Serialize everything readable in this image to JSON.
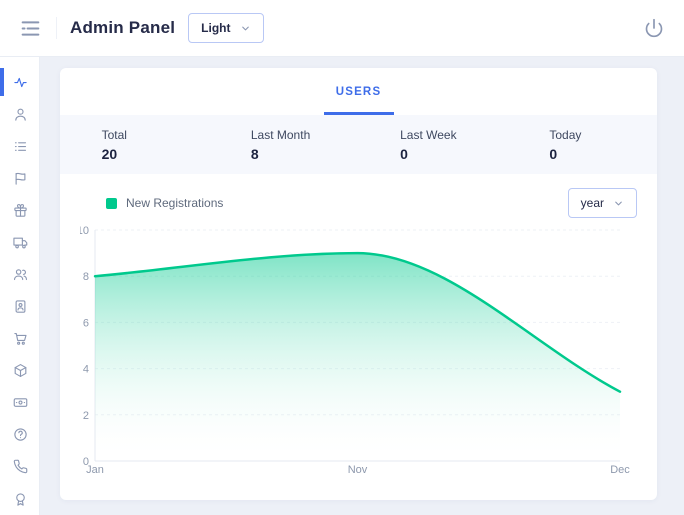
{
  "header": {
    "title": "Admin Panel",
    "menu_icon": "menu-icon",
    "theme_selector": {
      "value": "Light",
      "chevron_icon": "chevron-down-icon"
    },
    "power_icon": "power-icon"
  },
  "sidebar": {
    "items": [
      {
        "icon": "activity-icon",
        "active": true
      },
      {
        "icon": "user-icon",
        "active": false
      },
      {
        "icon": "list-icon",
        "active": false
      },
      {
        "icon": "flag-icon",
        "active": false
      },
      {
        "icon": "gift-icon",
        "active": false
      },
      {
        "icon": "truck-icon",
        "active": false
      },
      {
        "icon": "users-icon",
        "active": false
      },
      {
        "icon": "contact-card-icon",
        "active": false
      },
      {
        "icon": "cart-icon",
        "active": false
      },
      {
        "icon": "package-icon",
        "active": false
      },
      {
        "icon": "wallet-icon",
        "active": false
      },
      {
        "icon": "help-icon",
        "active": false
      },
      {
        "icon": "phone-icon",
        "active": false
      },
      {
        "icon": "award-icon",
        "active": false
      }
    ]
  },
  "tabs": [
    {
      "label": "USERS",
      "active": true
    }
  ],
  "stats": [
    {
      "label": "Total",
      "value": "20"
    },
    {
      "label": "Last Month",
      "value": "8"
    },
    {
      "label": "Last Week",
      "value": "0"
    },
    {
      "label": "Today",
      "value": "0"
    }
  ],
  "chart_controls": {
    "legend_label": "New Registrations",
    "range_selector": {
      "value": "year",
      "chevron_icon": "chevron-down-icon"
    }
  },
  "chart_data": {
    "type": "area",
    "title": "New Registrations by month",
    "categories": [
      "Jan",
      "Nov",
      "Dec"
    ],
    "series": [
      {
        "name": "New Registrations",
        "values": [
          8,
          9,
          3
        ]
      }
    ],
    "ylim": [
      0,
      10
    ],
    "ytick_step": 2,
    "xlabel": "",
    "ylabel": "",
    "grid": true,
    "legend_position": "top-left",
    "colors": {
      "line": "#00C98D",
      "fill_top": "rgba(0,201,141,0.5)",
      "fill_bottom": "rgba(255,255,255,0)"
    }
  },
  "colors": {
    "accent": "#3E6DE9",
    "green": "#00C98D"
  }
}
